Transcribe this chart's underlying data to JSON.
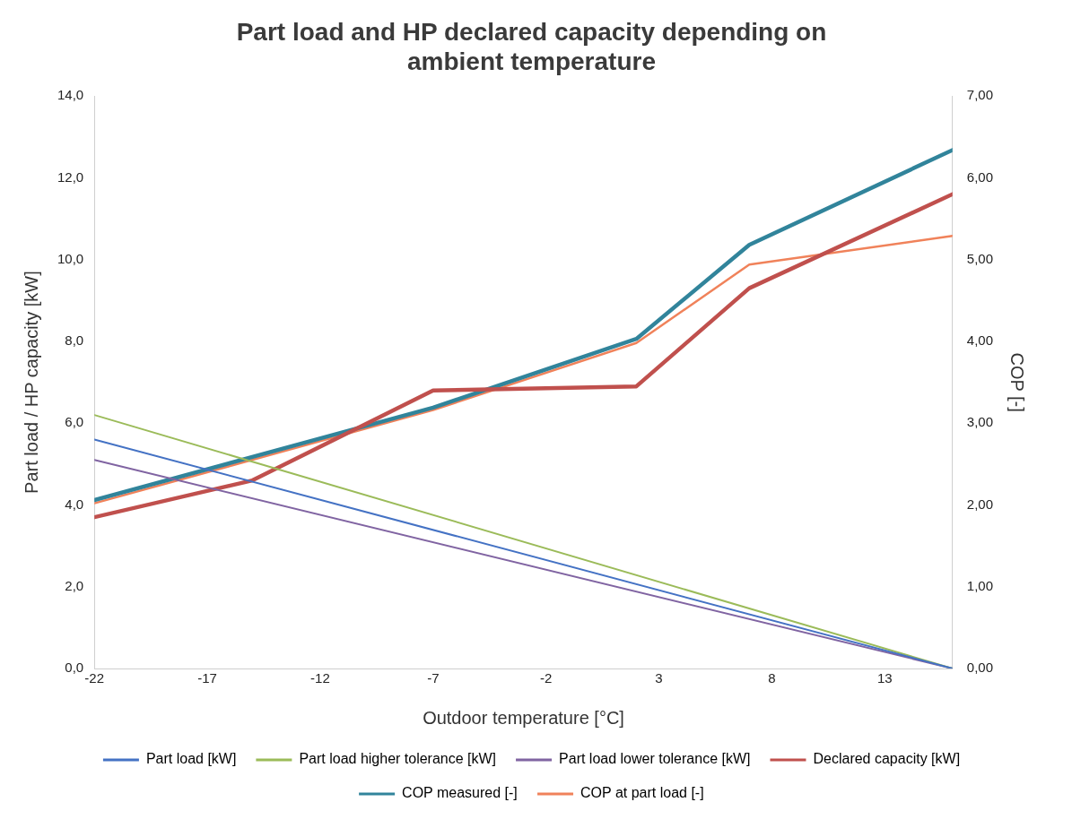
{
  "chart_data": {
    "type": "line",
    "title": "Part load and HP declared capacity depending on ambient temperature",
    "xlabel": "Outdoor temperature [°C]",
    "ylabel": "Part load / HP capacity [kW]",
    "y2label": "COP [-]",
    "xlim": [
      -22,
      16
    ],
    "xticks": [
      -22,
      -17,
      -12,
      -7,
      -2,
      3,
      8,
      13
    ],
    "ylim": [
      0,
      14
    ],
    "yticks": [
      {
        "value": 0,
        "label": "0,0"
      },
      {
        "value": 2,
        "label": "2,0"
      },
      {
        "value": 4,
        "label": "4,0"
      },
      {
        "value": 6,
        "label": "6,0"
      },
      {
        "value": 8,
        "label": "8,0"
      },
      {
        "value": 10,
        "label": "10,0"
      },
      {
        "value": 12,
        "label": "12,0"
      },
      {
        "value": 14,
        "label": "14,0"
      }
    ],
    "y2lim": [
      0,
      7
    ],
    "y2ticks": [
      {
        "value": 0,
        "label": "0,00"
      },
      {
        "value": 1,
        "label": "1,00"
      },
      {
        "value": 2,
        "label": "2,00"
      },
      {
        "value": 3,
        "label": "3,00"
      },
      {
        "value": 4,
        "label": "4,00"
      },
      {
        "value": 5,
        "label": "5,00"
      },
      {
        "value": 6,
        "label": "6,00"
      },
      {
        "value": 7,
        "label": "7,00"
      }
    ],
    "grid": false,
    "legend": "bottom",
    "marker": "none",
    "line_style": "solid",
    "series": [
      {
        "name": "Part load [kW]",
        "color": "#4472c4",
        "x": [
          -22,
          16
        ],
        "values": [
          5.6,
          0
        ]
      },
      {
        "name": "Part load higher tolerance [kW]",
        "color": "#9bbb59",
        "x": [
          -22,
          16
        ],
        "values": [
          6.2,
          0
        ]
      },
      {
        "name": "Part load lower tolerance [kW]",
        "color": "#8064a2",
        "x": [
          -22,
          16
        ],
        "values": [
          5.1,
          0
        ]
      },
      {
        "name": "Declared capacity [kW]",
        "color": "#c0504d",
        "x": [
          -22,
          -15,
          -7,
          2,
          7,
          16
        ],
        "values": [
          3.7,
          4.6,
          6.8,
          6.9,
          9.3,
          11.6
        ]
      },
      {
        "name": "COP measured [-]",
        "color": "#31849b",
        "axis": "y2",
        "x": [
          -22,
          -7,
          2,
          7,
          16
        ],
        "values": [
          2.06,
          3.19,
          4.03,
          5.18,
          6.34
        ]
      },
      {
        "name": "COP at part load [-]",
        "color": "#f0825a",
        "axis": "y2",
        "x": [
          -22,
          -7,
          2,
          7,
          16
        ],
        "values": [
          2.02,
          3.16,
          3.98,
          4.94,
          5.29
        ]
      }
    ]
  }
}
